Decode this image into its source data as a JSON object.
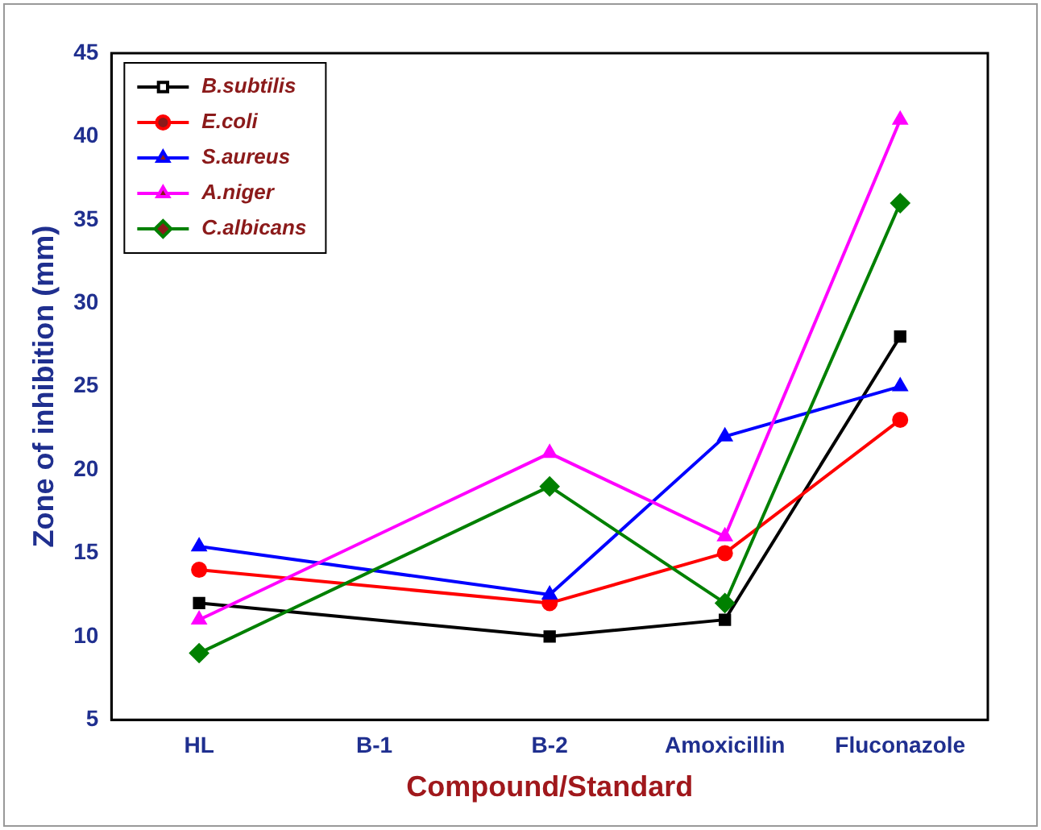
{
  "chart_data": {
    "type": "line",
    "xlabel": "Compound/Standard",
    "ylabel": "Zone of inhibition (mm)",
    "categories": [
      "HL",
      "B-1",
      "B-2",
      "Amoxicillin",
      "Fluconazole"
    ],
    "series": [
      {
        "name": "B.subtilis",
        "color": "#000000",
        "marker": "square",
        "values": [
          12,
          null,
          10,
          11,
          28
        ]
      },
      {
        "name": "E.coli",
        "color": "#ff0000",
        "marker": "circle",
        "values": [
          14,
          null,
          12,
          15,
          23
        ]
      },
      {
        "name": "S.aureus",
        "color": "#0000ff",
        "marker": "triangle",
        "values": [
          15.4,
          null,
          12.5,
          22,
          25
        ]
      },
      {
        "name": "A.niger",
        "color": "#ff00ff",
        "marker": "triangle",
        "values": [
          11,
          null,
          21,
          16,
          41
        ]
      },
      {
        "name": "C.albicans",
        "color": "#008000",
        "marker": "diamond",
        "values": [
          9,
          null,
          19,
          12,
          36
        ]
      }
    ],
    "ylim": [
      5,
      45
    ],
    "yticks": [
      5,
      10,
      15,
      20,
      25,
      30,
      35,
      40,
      45
    ],
    "grid": false,
    "legend": "top left"
  }
}
